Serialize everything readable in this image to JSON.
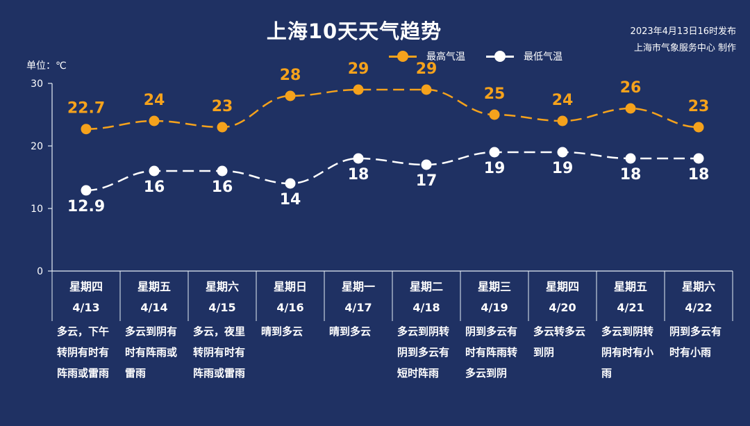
{
  "header": {
    "title": "上海10天天气趋势",
    "publish_line1": "2023年4月13日16时发布",
    "publish_line2": "上海市气象服务中心 制作",
    "unit": "单位：℃"
  },
  "colors": {
    "background": "#1f3163",
    "high": "#f5a21c",
    "low": "#ffffff",
    "axis": "#e6eef6"
  },
  "days": [
    {
      "week": "星期四",
      "date": "4/13",
      "desc": "多云，下午转阴有时有阵雨或雷雨"
    },
    {
      "week": "星期五",
      "date": "4/14",
      "desc": "多云到阴有时有阵雨或雷雨"
    },
    {
      "week": "星期六",
      "date": "4/15",
      "desc": "多云，夜里转阴有时有阵雨或雷雨"
    },
    {
      "week": "星期日",
      "date": "4/16",
      "desc": "晴到多云"
    },
    {
      "week": "星期一",
      "date": "4/17",
      "desc": "晴到多云"
    },
    {
      "week": "星期二",
      "date": "4/18",
      "desc": "多云到阴转阴到多云有短时阵雨"
    },
    {
      "week": "星期三",
      "date": "4/19",
      "desc": "阴到多云有时有阵雨转多云到阴"
    },
    {
      "week": "星期四",
      "date": "4/20",
      "desc": "多云转多云到阴"
    },
    {
      "week": "星期五",
      "date": "4/21",
      "desc": "多云到阴转阴有时有小雨"
    },
    {
      "week": "星期六",
      "date": "4/22",
      "desc": "阴到多云有时有小雨"
    }
  ],
  "chart_data": {
    "type": "line",
    "title": "上海10天天气趋势",
    "ylabel": "单位：℃",
    "ylim": [
      0,
      30
    ],
    "yticks": [
      0,
      10,
      20,
      30
    ],
    "categories": [
      "4/13",
      "4/14",
      "4/15",
      "4/16",
      "4/17",
      "4/18",
      "4/19",
      "4/20",
      "4/21",
      "4/22"
    ],
    "series": [
      {
        "name": "最高气温",
        "values": [
          22.7,
          24,
          23,
          28,
          29,
          29,
          25,
          24,
          26,
          23
        ],
        "labels": [
          "22.7",
          "24",
          "23",
          "28",
          "29",
          "29",
          "25",
          "24",
          "26",
          "23"
        ]
      },
      {
        "name": "最低气温",
        "values": [
          12.9,
          16,
          16,
          14,
          18,
          17,
          19,
          19,
          18,
          18
        ],
        "labels": [
          "12.9",
          "16",
          "16",
          "14",
          "18",
          "17",
          "19",
          "19",
          "18",
          "18"
        ]
      }
    ],
    "grid": false,
    "legend": "top"
  }
}
